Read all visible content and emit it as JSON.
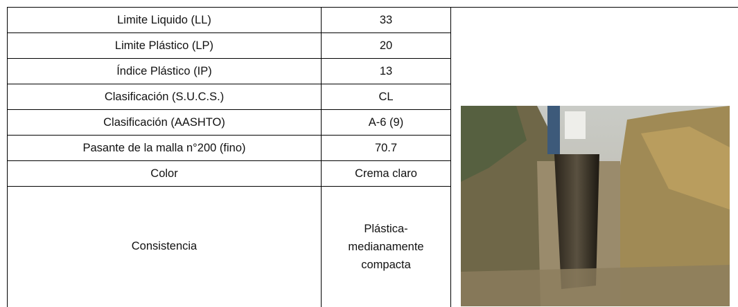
{
  "table": {
    "rows": [
      [
        "Limite Liquido (LL)",
        "33"
      ],
      [
        "Limite Plástico (LP)",
        "20"
      ],
      [
        "Índice Plástico (IP)",
        "13"
      ],
      [
        "Clasificación (S.U.C.S.)",
        "CL"
      ],
      [
        "Clasificación (AASHTO)",
        "A-6 (9)"
      ],
      [
        "Pasante de la malla n°200 (fino)",
        "70.7"
      ],
      [
        "Color",
        "Crema claro"
      ],
      [
        "Consistencia",
        [
          "Plástica-",
          "medianamente",
          "compacta"
        ]
      ]
    ]
  }
}
